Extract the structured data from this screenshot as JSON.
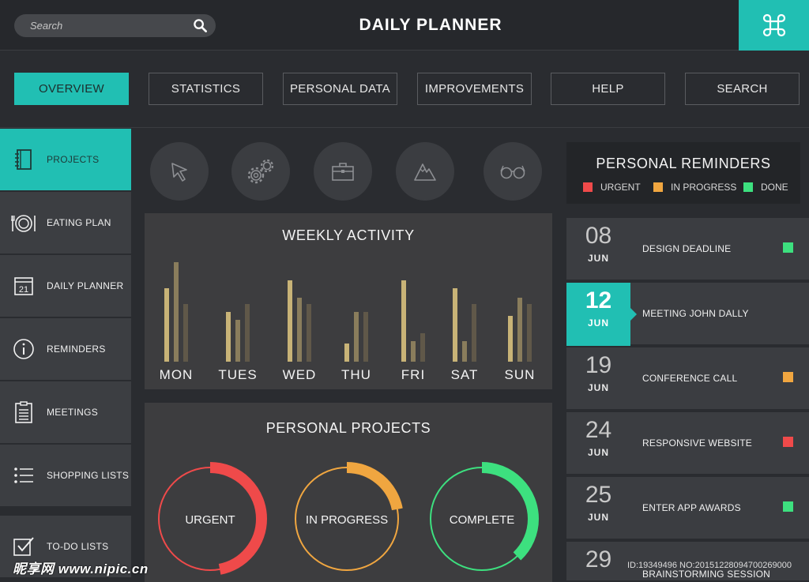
{
  "header": {
    "search_placeholder": "Search",
    "title": "DAILY PLANNER",
    "accent": "#21bfb3"
  },
  "tabs": [
    {
      "label": "OVERVIEW",
      "active": true
    },
    {
      "label": "STATISTICS"
    },
    {
      "label": "PERSONAL DATA"
    },
    {
      "label": "IMPROVEMENTS"
    },
    {
      "label": "HELP"
    },
    {
      "label": "SEARCH"
    }
  ],
  "sidebar": {
    "items": [
      {
        "label": "PROJECTS",
        "icon": "notebook-icon",
        "active": true
      },
      {
        "label": "EATING PLAN",
        "icon": "plate-icon"
      },
      {
        "label": "DAILY PLANNER",
        "icon": "calendar-icon",
        "icon_text": "21"
      },
      {
        "label": "REMINDERS",
        "icon": "info-icon"
      },
      {
        "label": "MEETINGS",
        "icon": "clipboard-icon"
      },
      {
        "label": "SHOPPING LISTS",
        "icon": "list-icon"
      },
      {
        "label": "TO-DO LISTS",
        "icon": "checkbox-icon"
      }
    ]
  },
  "quick_icons": [
    "cursor-icon",
    "gears-icon",
    "briefcase-icon",
    "mountain-icon",
    "glasses-icon"
  ],
  "weekly": {
    "title": "WEEKLY ACTIVITY"
  },
  "chart_data": {
    "type": "bar",
    "title": "WEEKLY ACTIVITY",
    "categories": [
      "MON",
      "TUES",
      "WED",
      "THU",
      "FRI",
      "SAT",
      "SUN"
    ],
    "series": [
      {
        "values": [
          93,
          63,
          103,
          23,
          103,
          93,
          58
        ],
        "color": "#c8b377"
      },
      {
        "values": [
          126,
          53,
          81,
          63,
          26,
          26,
          81
        ],
        "color": "#8a7d5c"
      },
      {
        "values": [
          73,
          73,
          73,
          63,
          36,
          73,
          73
        ],
        "color": "#605849"
      }
    ],
    "ylim": [
      0,
      140
    ],
    "grid": false
  },
  "projects": {
    "title": "PERSONAL PROJECTS",
    "items": [
      {
        "label": "URGENT",
        "color": "#ef4a4a",
        "progress": 0.47
      },
      {
        "label": "IN PROGRESS",
        "color": "#f0a640",
        "progress": 0.22
      },
      {
        "label": "COMPLETE",
        "color": "#3de07f",
        "progress": 0.38
      }
    ]
  },
  "reminders": {
    "title": "PERSONAL REMINDERS",
    "legend": [
      {
        "label": "URGENT",
        "color": "#ef4a4a"
      },
      {
        "label": "IN PROGRESS",
        "color": "#f0a640"
      },
      {
        "label": "DONE",
        "color": "#3de07f"
      }
    ],
    "items": [
      {
        "day": "08",
        "month": "JUN",
        "label": "DESIGN DEADLINE",
        "status_color": "#3de07f"
      },
      {
        "day": "12",
        "month": "JUN",
        "label": "MEETING JOHN DALLY",
        "active": true
      },
      {
        "day": "19",
        "month": "JUN",
        "label": "CONFERENCE CALL",
        "status_color": "#f0a640"
      },
      {
        "day": "24",
        "month": "JUN",
        "label": "RESPONSIVE WEBSITE",
        "status_color": "#ef4a4a"
      },
      {
        "day": "25",
        "month": "JUN",
        "label": "ENTER APP AWARDS",
        "status_color": "#3de07f"
      },
      {
        "day": "29",
        "month": "JUN",
        "label": "BRAINSTORMING SESSION"
      }
    ]
  },
  "watermark": {
    "brand": "昵享网 www.nipic.cn",
    "id": "ID:19349496 NO:20151228094700269000"
  }
}
